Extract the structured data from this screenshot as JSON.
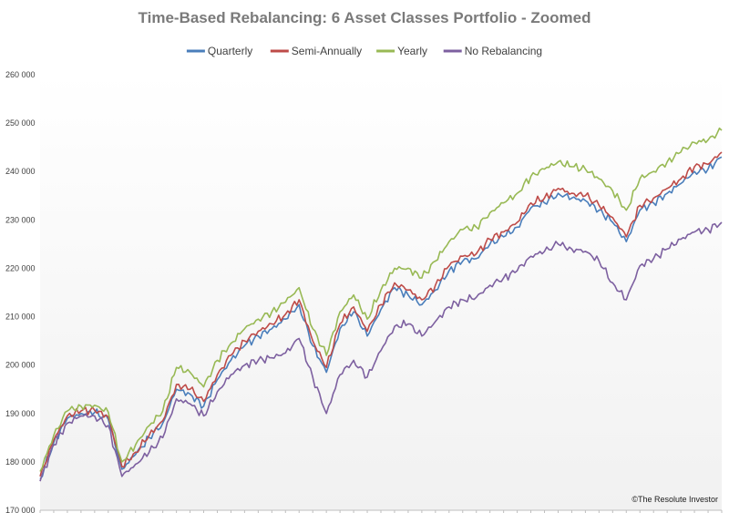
{
  "chart_data": {
    "type": "line",
    "title": "Time-Based Rebalancing: 6 Asset Classes Portfolio - Zoomed",
    "xlabel": "",
    "ylabel": "",
    "ylim": [
      170000,
      260000
    ],
    "yticks": [
      170000,
      180000,
      190000,
      200000,
      210000,
      220000,
      230000,
      240000,
      250000,
      260000
    ],
    "ytick_labels": [
      "170 000",
      "180 000",
      "190 000",
      "200 000",
      "210 000",
      "220 000",
      "230 000",
      "240 000",
      "250 000",
      "260 000"
    ],
    "x_tick_count": 50,
    "legend_position": "top-center",
    "grid": false,
    "x": [
      0,
      2,
      4,
      6,
      8,
      10,
      12,
      14,
      16,
      18,
      20,
      22,
      24,
      26,
      28,
      30,
      32,
      34,
      36,
      38,
      40,
      42,
      44,
      46,
      48,
      50,
      52,
      54,
      56,
      58,
      60,
      62,
      64,
      66,
      68,
      70,
      72,
      74,
      76,
      78,
      80,
      82,
      84,
      86,
      88,
      90,
      92,
      94,
      96,
      98,
      100
    ],
    "series": [
      {
        "name": "Quarterly",
        "color": "#4a7ebb",
        "values": [
          176500,
          184000,
          189000,
          190000,
          190200,
          188800,
          178500,
          181500,
          185000,
          188000,
          195000,
          194000,
          191500,
          197000,
          201000,
          204000,
          206000,
          207500,
          209500,
          212500,
          204000,
          198500,
          207500,
          211000,
          206000,
          211500,
          216000,
          214500,
          212500,
          215500,
          219500,
          221500,
          222000,
          225000,
          226500,
          228500,
          232500,
          233500,
          235500,
          234500,
          234000,
          232000,
          229500,
          225500,
          232000,
          233500,
          235500,
          237500,
          240000,
          240500,
          243000
        ]
      },
      {
        "name": "Semi-Annually",
        "color": "#be4b48",
        "values": [
          177000,
          184500,
          189500,
          190500,
          190700,
          189300,
          179000,
          182000,
          185500,
          188500,
          196000,
          195000,
          192500,
          198000,
          202000,
          205000,
          207000,
          208500,
          210500,
          213500,
          205000,
          199500,
          208500,
          212000,
          207000,
          212500,
          217000,
          215500,
          213500,
          216500,
          220500,
          222500,
          223000,
          226000,
          227500,
          229500,
          233500,
          234500,
          236500,
          235500,
          235000,
          233000,
          230500,
          226500,
          233000,
          234500,
          236500,
          238500,
          241000,
          241500,
          244000
        ]
      },
      {
        "name": "Yearly",
        "color": "#98b954",
        "values": [
          178000,
          185500,
          190500,
          191500,
          191700,
          190300,
          180000,
          183500,
          187500,
          190500,
          199500,
          198500,
          195500,
          201000,
          204500,
          207500,
          209500,
          211000,
          213000,
          216000,
          207500,
          202000,
          211000,
          214500,
          209500,
          215500,
          220000,
          220000,
          218000,
          221500,
          225500,
          228000,
          228500,
          231500,
          233500,
          235500,
          239000,
          240500,
          242000,
          241000,
          240500,
          238500,
          236000,
          232000,
          238500,
          240000,
          242000,
          244000,
          246000,
          246500,
          248500
        ]
      },
      {
        "name": "No Rebalancing",
        "color": "#7d60a0",
        "values": [
          176000,
          183500,
          188000,
          189500,
          189500,
          187500,
          177000,
          179500,
          182000,
          185000,
          193000,
          192000,
          189500,
          194500,
          198000,
          200000,
          201000,
          201500,
          202500,
          205500,
          197500,
          190000,
          198000,
          201000,
          197500,
          203000,
          208000,
          208500,
          206000,
          209000,
          212000,
          213500,
          214000,
          216500,
          218000,
          219500,
          222500,
          223500,
          225000,
          224000,
          223500,
          221500,
          217000,
          213500,
          220500,
          222000,
          224000,
          226000,
          227500,
          228000,
          229500
        ]
      }
    ]
  },
  "footer": {
    "copyright": "©The Resolute Investor"
  }
}
